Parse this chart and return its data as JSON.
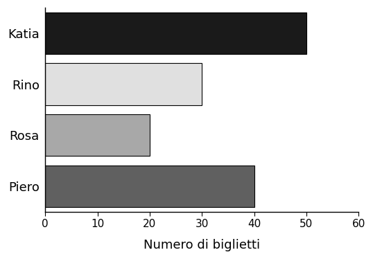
{
  "categories": [
    "Piero",
    "Rosa",
    "Rino",
    "Katia"
  ],
  "values": [
    40,
    20,
    30,
    50
  ],
  "bar_colors": [
    "#606060",
    "#a8a8a8",
    "#e0e0e0",
    "#1a1a1a"
  ],
  "bar_edgecolors": [
    "#000000",
    "#000000",
    "#000000",
    "#000000"
  ],
  "xlabel": "Numero di biglietti",
  "xlim": [
    0,
    60
  ],
  "xticks": [
    0,
    10,
    20,
    30,
    40,
    50,
    60
  ],
  "xlabel_fontsize": 13,
  "tick_fontsize": 11,
  "label_fontsize": 13,
  "background_color": "#ffffff"
}
